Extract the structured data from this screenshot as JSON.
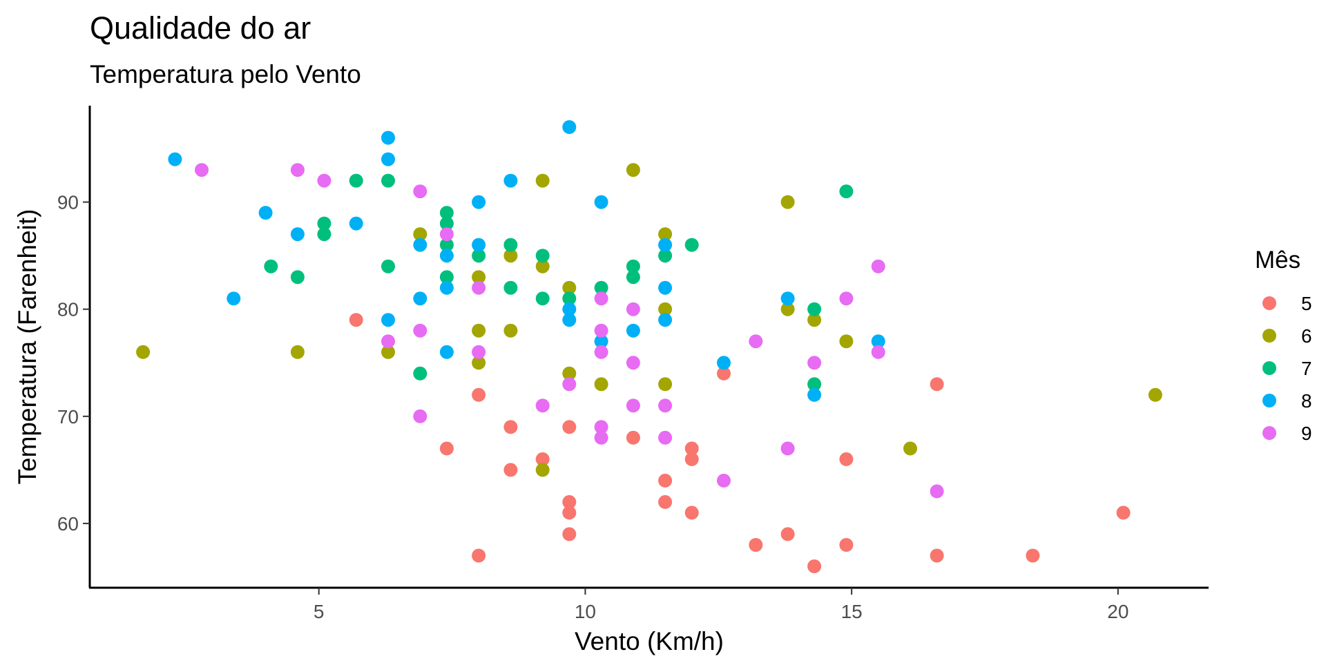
{
  "chart_data": {
    "type": "scatter",
    "title": "Qualidade do ar",
    "subtitle": "Temperatura pelo Vento",
    "xlabel": "Vento (Km/h)",
    "ylabel": "Temperatura (Farenheit)",
    "xlim": [
      0.7,
      21.7
    ],
    "ylim": [
      54,
      99
    ],
    "xticks": [
      5,
      10,
      15,
      20
    ],
    "yticks": [
      60,
      70,
      80,
      90
    ],
    "grid": false,
    "legend": {
      "title": "Mês",
      "placement": "right"
    },
    "series": [
      {
        "name": "5",
        "color": "#F8766D",
        "points": [
          [
            5.7,
            79
          ],
          [
            7.4,
            67
          ],
          [
            8.0,
            72
          ],
          [
            8.0,
            57
          ],
          [
            8.6,
            69
          ],
          [
            8.6,
            65
          ],
          [
            9.2,
            66
          ],
          [
            9.7,
            69
          ],
          [
            9.7,
            62
          ],
          [
            9.7,
            61
          ],
          [
            9.7,
            59
          ],
          [
            10.9,
            68
          ],
          [
            11.5,
            64
          ],
          [
            11.5,
            62
          ],
          [
            12.0,
            67
          ],
          [
            12.0,
            66
          ],
          [
            12.0,
            61
          ],
          [
            12.6,
            74
          ],
          [
            13.2,
            58
          ],
          [
            13.8,
            59
          ],
          [
            14.3,
            56
          ],
          [
            14.9,
            66
          ],
          [
            14.9,
            58
          ],
          [
            16.6,
            73
          ],
          [
            16.6,
            57
          ],
          [
            18.4,
            57
          ],
          [
            20.1,
            61
          ]
        ]
      },
      {
        "name": "6",
        "color": "#A3A500",
        "points": [
          [
            1.7,
            76
          ],
          [
            4.6,
            76
          ],
          [
            6.3,
            76
          ],
          [
            6.9,
            87
          ],
          [
            8.0,
            83
          ],
          [
            8.0,
            78
          ],
          [
            8.0,
            75
          ],
          [
            8.6,
            85
          ],
          [
            8.6,
            78
          ],
          [
            9.2,
            92
          ],
          [
            9.2,
            84
          ],
          [
            9.2,
            65
          ],
          [
            9.7,
            82
          ],
          [
            9.7,
            74
          ],
          [
            10.3,
            73
          ],
          [
            10.9,
            93
          ],
          [
            11.5,
            87
          ],
          [
            11.5,
            80
          ],
          [
            11.5,
            73
          ],
          [
            13.8,
            90
          ],
          [
            13.8,
            80
          ],
          [
            14.3,
            79
          ],
          [
            14.9,
            77
          ],
          [
            16.1,
            67
          ],
          [
            20.7,
            72
          ]
        ]
      },
      {
        "name": "7",
        "color": "#00BF7D",
        "points": [
          [
            4.1,
            84
          ],
          [
            4.6,
            83
          ],
          [
            5.1,
            88
          ],
          [
            5.1,
            87
          ],
          [
            5.7,
            92
          ],
          [
            6.3,
            92
          ],
          [
            6.3,
            84
          ],
          [
            6.9,
            74
          ],
          [
            7.4,
            89
          ],
          [
            7.4,
            88
          ],
          [
            7.4,
            86
          ],
          [
            7.4,
            83
          ],
          [
            8.0,
            85
          ],
          [
            8.6,
            86
          ],
          [
            8.6,
            82
          ],
          [
            9.2,
            85
          ],
          [
            9.2,
            81
          ],
          [
            9.7,
            81
          ],
          [
            10.3,
            82
          ],
          [
            10.9,
            84
          ],
          [
            10.9,
            83
          ],
          [
            11.5,
            85
          ],
          [
            12.0,
            86
          ],
          [
            14.3,
            80
          ],
          [
            14.3,
            73
          ],
          [
            14.9,
            91
          ]
        ]
      },
      {
        "name": "8",
        "color": "#00B0F6",
        "points": [
          [
            2.3,
            94
          ],
          [
            3.4,
            81
          ],
          [
            4.0,
            89
          ],
          [
            4.6,
            87
          ],
          [
            5.7,
            88
          ],
          [
            6.3,
            96
          ],
          [
            6.3,
            94
          ],
          [
            6.3,
            79
          ],
          [
            6.9,
            86
          ],
          [
            6.9,
            81
          ],
          [
            7.4,
            85
          ],
          [
            7.4,
            82
          ],
          [
            7.4,
            76
          ],
          [
            8.0,
            90
          ],
          [
            8.0,
            86
          ],
          [
            8.6,
            92
          ],
          [
            9.7,
            97
          ],
          [
            9.7,
            80
          ],
          [
            9.7,
            79
          ],
          [
            10.3,
            90
          ],
          [
            10.3,
            77
          ],
          [
            10.9,
            78
          ],
          [
            11.5,
            86
          ],
          [
            11.5,
            82
          ],
          [
            11.5,
            79
          ],
          [
            12.6,
            75
          ],
          [
            13.8,
            81
          ],
          [
            14.3,
            72
          ],
          [
            15.5,
            77
          ]
        ]
      },
      {
        "name": "9",
        "color": "#E76BF3",
        "points": [
          [
            2.8,
            93
          ],
          [
            4.6,
            93
          ],
          [
            5.1,
            92
          ],
          [
            6.3,
            77
          ],
          [
            6.9,
            91
          ],
          [
            6.9,
            78
          ],
          [
            6.9,
            70
          ],
          [
            7.4,
            87
          ],
          [
            8.0,
            82
          ],
          [
            8.0,
            76
          ],
          [
            9.2,
            71
          ],
          [
            9.7,
            73
          ],
          [
            10.3,
            81
          ],
          [
            10.3,
            78
          ],
          [
            10.3,
            76
          ],
          [
            10.3,
            69
          ],
          [
            10.3,
            68
          ],
          [
            10.9,
            80
          ],
          [
            10.9,
            75
          ],
          [
            10.9,
            71
          ],
          [
            11.5,
            71
          ],
          [
            11.5,
            68
          ],
          [
            12.6,
            64
          ],
          [
            13.2,
            77
          ],
          [
            13.8,
            67
          ],
          [
            14.3,
            75
          ],
          [
            14.9,
            81
          ],
          [
            15.5,
            84
          ],
          [
            15.5,
            76
          ],
          [
            16.6,
            63
          ]
        ]
      }
    ]
  }
}
